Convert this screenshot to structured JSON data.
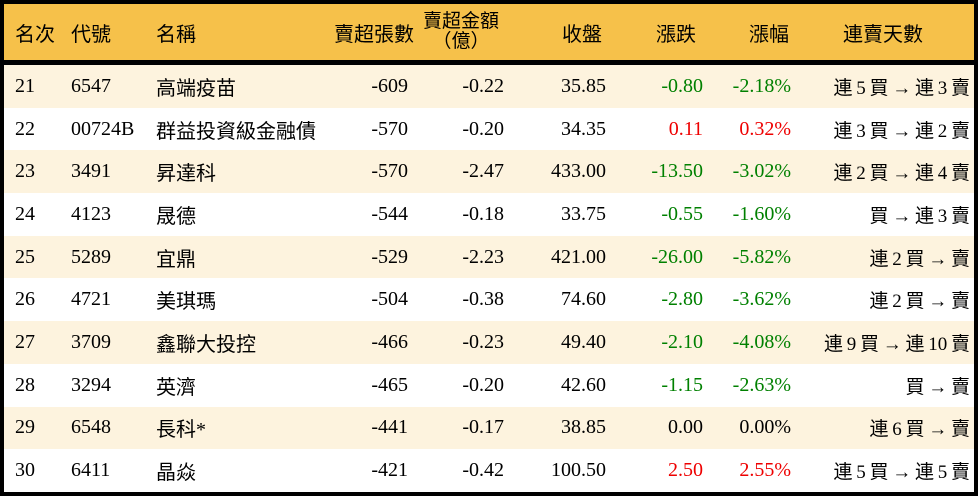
{
  "colors": {
    "header_bg": "#f6c14a",
    "row_alt_bg": "#fdf3de",
    "up": "#ee0000",
    "down": "#008000",
    "border": "#000000"
  },
  "table": {
    "headers": {
      "rank": "名次",
      "code": "代號",
      "name": "名稱",
      "volume": "賣超張數",
      "amount_line1": "賣超金額",
      "amount_line2": "（億）",
      "close": "收盤",
      "change": "漲跌",
      "pct": "漲幅",
      "streak": "連賣天數"
    },
    "rows": [
      {
        "rank": "21",
        "code": "6547",
        "name": "高端疫苗",
        "volume": "-609",
        "amount": "-0.22",
        "close": "35.85",
        "change": "-0.80",
        "pct": "-2.18%",
        "streak": "連 5 買 → 連 3 賣",
        "trend": "down"
      },
      {
        "rank": "22",
        "code": "00724B",
        "name": "群益投資級金融債",
        "volume": "-570",
        "amount": "-0.20",
        "close": "34.35",
        "change": "0.11",
        "pct": "0.32%",
        "streak": "連 3 買 → 連 2 賣",
        "trend": "up"
      },
      {
        "rank": "23",
        "code": "3491",
        "name": "昇達科",
        "volume": "-570",
        "amount": "-2.47",
        "close": "433.00",
        "change": "-13.50",
        "pct": "-3.02%",
        "streak": "連 2 買 → 連 4 賣",
        "trend": "down"
      },
      {
        "rank": "24",
        "code": "4123",
        "name": "晟德",
        "volume": "-544",
        "amount": "-0.18",
        "close": "33.75",
        "change": "-0.55",
        "pct": "-1.60%",
        "streak": "買 → 連 3 賣",
        "trend": "down"
      },
      {
        "rank": "25",
        "code": "5289",
        "name": "宜鼎",
        "volume": "-529",
        "amount": "-2.23",
        "close": "421.00",
        "change": "-26.00",
        "pct": "-5.82%",
        "streak": "連 2 買 → 賣",
        "trend": "down"
      },
      {
        "rank": "26",
        "code": "4721",
        "name": "美琪瑪",
        "volume": "-504",
        "amount": "-0.38",
        "close": "74.60",
        "change": "-2.80",
        "pct": "-3.62%",
        "streak": "連 2 買 → 賣",
        "trend": "down"
      },
      {
        "rank": "27",
        "code": "3709",
        "name": "鑫聯大投控",
        "volume": "-466",
        "amount": "-0.23",
        "close": "49.40",
        "change": "-2.10",
        "pct": "-4.08%",
        "streak": "連 9 買 → 連 10 賣",
        "trend": "down"
      },
      {
        "rank": "28",
        "code": "3294",
        "name": "英濟",
        "volume": "-465",
        "amount": "-0.20",
        "close": "42.60",
        "change": "-1.15",
        "pct": "-2.63%",
        "streak": "買 → 賣",
        "trend": "down"
      },
      {
        "rank": "29",
        "code": "6548",
        "name": "長科*",
        "volume": "-441",
        "amount": "-0.17",
        "close": "38.85",
        "change": "0.00",
        "pct": "0.00%",
        "streak": "連 6 買 → 賣",
        "trend": "flat"
      },
      {
        "rank": "30",
        "code": "6411",
        "name": "晶焱",
        "volume": "-421",
        "amount": "-0.42",
        "close": "100.50",
        "change": "2.50",
        "pct": "2.55%",
        "streak": "連 5 買 → 連 5 賣",
        "trend": "up"
      }
    ]
  }
}
